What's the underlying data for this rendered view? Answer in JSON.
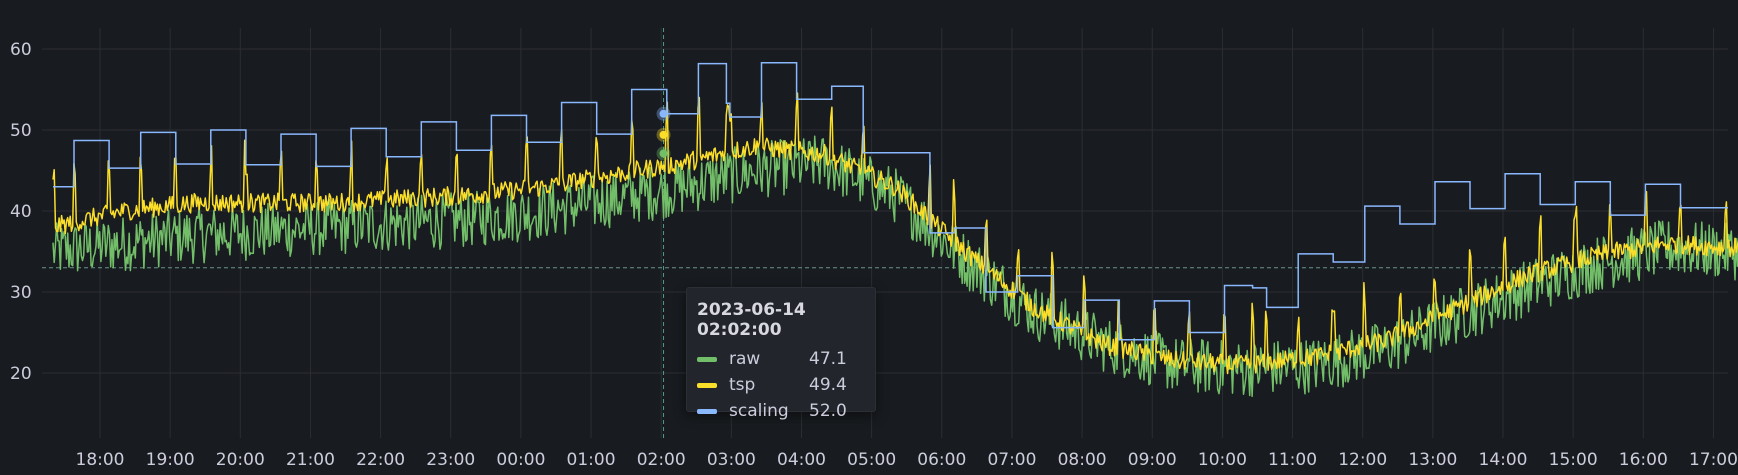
{
  "chart_data": {
    "type": "line",
    "x_range": [
      "2023-06-13 17:20",
      "2023-06-14 17:10"
    ],
    "ylim": [
      13,
      63
    ],
    "y_ticks": [
      20,
      30,
      40,
      50,
      60
    ],
    "x_ticks": [
      "18:00",
      "19:00",
      "20:00",
      "21:00",
      "22:00",
      "23:00",
      "00:00",
      "01:00",
      "02:00",
      "03:00",
      "04:00",
      "05:00",
      "06:00",
      "07:00",
      "08:00",
      "09:00",
      "10:00",
      "11:00",
      "12:00",
      "13:00",
      "14:00",
      "15:00",
      "16:00",
      "17:00"
    ],
    "grid": true,
    "legend": "tooltip",
    "threshold_line": 33,
    "cursor_time": "2023-06-14 02:02:00",
    "series": [
      {
        "name": "raw",
        "color": "#73bf69",
        "baseline": [
          [
            0,
            35
          ],
          [
            1,
            36
          ],
          [
            2,
            37
          ],
          [
            3,
            37.5
          ],
          [
            4,
            38
          ],
          [
            5,
            38.5
          ],
          [
            6,
            39
          ],
          [
            7,
            40
          ],
          [
            8,
            41.5
          ],
          [
            9,
            43
          ],
          [
            10,
            45
          ],
          [
            11,
            46
          ],
          [
            12,
            42
          ],
          [
            13,
            34
          ],
          [
            14,
            27.5
          ],
          [
            15,
            23.5
          ],
          [
            16,
            21
          ],
          [
            17,
            20.5
          ],
          [
            18,
            21
          ],
          [
            19,
            23
          ],
          [
            20,
            27
          ],
          [
            21,
            30.5
          ],
          [
            22,
            33.5
          ],
          [
            23,
            35.5
          ],
          [
            23.85,
            35
          ]
        ],
        "noise": 3.5
      },
      {
        "name": "tsp",
        "color": "#fade2a",
        "baseline": [
          [
            0,
            38
          ],
          [
            1,
            40
          ],
          [
            2,
            41
          ],
          [
            3,
            41
          ],
          [
            4,
            41
          ],
          [
            5,
            41.5
          ],
          [
            6,
            42
          ],
          [
            7,
            43
          ],
          [
            8,
            44.5
          ],
          [
            9,
            46
          ],
          [
            10,
            48
          ],
          [
            11,
            47
          ],
          [
            12,
            43
          ],
          [
            13,
            35
          ],
          [
            14,
            28
          ],
          [
            15,
            23.5
          ],
          [
            16,
            21.5
          ],
          [
            17,
            21
          ],
          [
            18,
            22
          ],
          [
            19,
            24
          ],
          [
            20,
            28
          ],
          [
            21,
            32
          ],
          [
            22,
            34.5
          ],
          [
            23,
            36
          ],
          [
            23.85,
            35.5
          ]
        ],
        "noise": 1.2
      },
      {
        "name": "scaling",
        "color": "#8ab8ff",
        "steps": [
          [
            0,
            43
          ],
          [
            0.3,
            48.7
          ],
          [
            0.8,
            45.3
          ],
          [
            1.25,
            49.7
          ],
          [
            1.75,
            45.8
          ],
          [
            2.25,
            50
          ],
          [
            2.75,
            45.7
          ],
          [
            3.25,
            49.5
          ],
          [
            3.75,
            45.5
          ],
          [
            4.25,
            50.2
          ],
          [
            4.75,
            46.7
          ],
          [
            5.25,
            51
          ],
          [
            5.75,
            47.5
          ],
          [
            6.25,
            51.8
          ],
          [
            6.75,
            48.5
          ],
          [
            7.25,
            53.4
          ],
          [
            7.75,
            49.5
          ],
          [
            8.25,
            55
          ],
          [
            8.75,
            52
          ],
          [
            9.2,
            58.2
          ],
          [
            9.6,
            53.3
          ],
          [
            9.65,
            51.6
          ],
          [
            10.1,
            58.3
          ],
          [
            10.6,
            53.8
          ],
          [
            11.1,
            55.4
          ],
          [
            11.55,
            47.2
          ],
          [
            12.5,
            37.3
          ],
          [
            12.85,
            37.9
          ],
          [
            13.3,
            30
          ],
          [
            13.75,
            32
          ],
          [
            14.25,
            25.6
          ],
          [
            14.7,
            29
          ],
          [
            15.2,
            24.1
          ],
          [
            15.7,
            28.9
          ],
          [
            16.2,
            25
          ],
          [
            16.7,
            30.8
          ],
          [
            17.1,
            30.5
          ],
          [
            17.3,
            28.1
          ],
          [
            17.75,
            34.7
          ],
          [
            18.25,
            33.7
          ],
          [
            18.7,
            40.6
          ],
          [
            19.2,
            38.4
          ],
          [
            19.7,
            43.6
          ],
          [
            20.2,
            40.3
          ],
          [
            20.7,
            44.6
          ],
          [
            21.2,
            40.8
          ],
          [
            21.7,
            43.6
          ],
          [
            22.2,
            39.5
          ],
          [
            22.7,
            43.3
          ],
          [
            23.2,
            40.4
          ],
          [
            23.85,
            40.4
          ]
        ]
      }
    ],
    "tooltip": {
      "time": "2023-06-14 02:02:00",
      "rows": [
        {
          "name": "raw",
          "value": "47.1",
          "color": "#73bf69"
        },
        {
          "name": "tsp",
          "value": "49.4",
          "color": "#fade2a"
        },
        {
          "name": "scaling",
          "value": "52.0",
          "color": "#8ab8ff"
        }
      ]
    }
  }
}
